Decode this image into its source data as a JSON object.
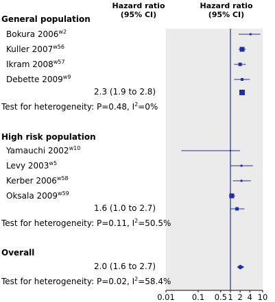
{
  "header": {
    "col1": [
      "Hazard ratio",
      "(95% CI)"
    ],
    "col2": [
      "Hazard ratio",
      "(95% CI)"
    ]
  },
  "groups": [
    {
      "name": "General population",
      "studies": [
        {
          "label": "Bokura 2006",
          "ref": "w2",
          "hr": 4.2,
          "lo": 1.8,
          "hi": 8.5
        },
        {
          "label": "Kuller 2007",
          "ref": "w56",
          "hr": 2.3,
          "lo": 1.8,
          "hi": 3.0
        },
        {
          "label": "Ikram 2008",
          "ref": "w57",
          "hr": 2.0,
          "lo": 1.3,
          "hi": 3.0
        },
        {
          "label": "Debette 2009",
          "ref": "w9",
          "hr": 2.3,
          "lo": 1.3,
          "hi": 4.0
        }
      ],
      "summary": {
        "text": "2.3 (1.9 to 2.8)",
        "hr": 2.3,
        "lo": 1.9,
        "hi": 2.8
      },
      "heterogeneity": {
        "prefix": "Test for heterogeneity: P=0.48, I",
        "sup": "2",
        "suffix": "=0%"
      }
    },
    {
      "name": "High risk population",
      "studies": [
        {
          "label": "Yamauchi 2002",
          "ref": "w10",
          "hr": 1.0,
          "lo": 0.03,
          "hi": 2.0
        },
        {
          "label": "Levy 2003",
          "ref": "w5",
          "hr": 2.2,
          "lo": 1.0,
          "hi": 5.0
        },
        {
          "label": "Kerber 2006",
          "ref": "w58",
          "hr": 2.2,
          "lo": 1.2,
          "hi": 4.3
        },
        {
          "label": "Oksala 2009",
          "ref": "w59",
          "hr": 1.1,
          "lo": 0.9,
          "hi": 1.4
        }
      ],
      "summary": {
        "text": "1.6 (1.0 to 2.7)",
        "hr": 1.6,
        "lo": 1.0,
        "hi": 2.7
      },
      "heterogeneity": {
        "prefix": "Test for heterogeneity: P=0.11, I",
        "sup": "2",
        "suffix": "=50.5%"
      }
    }
  ],
  "overall": {
    "name": "Overall",
    "summary": {
      "text": "2.0 (1.6 to 2.7)",
      "hr": 2.0,
      "lo": 1.6,
      "hi": 2.7
    },
    "heterogeneity": {
      "prefix": "Test for heterogeneity: P=0.02, I",
      "sup": "2",
      "suffix": "=58.4%"
    }
  },
  "chart_data": {
    "type": "forest",
    "scale": "log",
    "xlim": [
      0.01,
      10
    ],
    "x_ticks": [
      0.01,
      0.1,
      0.5,
      1,
      2,
      4,
      10
    ],
    "x_tick_labels": [
      "0.01",
      "0.1",
      "0.5",
      "1",
      "2",
      "4",
      "10"
    ],
    "reference_line": 1
  },
  "colors": {
    "marker": "#1f2ea0",
    "panel": "#ebebeb",
    "ref_line": "#1f2ea0"
  }
}
